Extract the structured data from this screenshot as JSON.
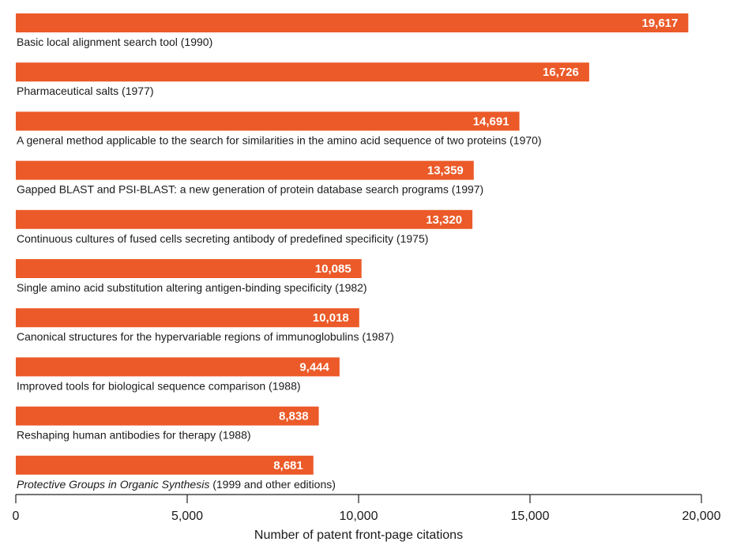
{
  "chart_data": {
    "type": "bar",
    "orientation": "horizontal",
    "categories": [
      {
        "pre": "",
        "italic": "",
        "post": "Basic local alignment search tool (1990)"
      },
      {
        "pre": "",
        "italic": "",
        "post": "Pharmaceutical salts (1977)"
      },
      {
        "pre": "",
        "italic": "",
        "post": "A general method applicable to the search for similarities in the amino acid sequence of two proteins (1970)"
      },
      {
        "pre": "",
        "italic": "",
        "post": "Gapped BLAST and PSI-BLAST: a new generation of protein database search programs (1997)"
      },
      {
        "pre": "",
        "italic": "",
        "post": "Continuous cultures of fused cells secreting antibody of predefined specificity (1975)"
      },
      {
        "pre": "",
        "italic": "",
        "post": "Single amino acid substitution altering antigen-binding specificity (1982)"
      },
      {
        "pre": "",
        "italic": "",
        "post": "Canonical structures for the hypervariable regions of immunoglobulins (1987)"
      },
      {
        "pre": "",
        "italic": "",
        "post": "Improved tools for biological sequence comparison (1988)"
      },
      {
        "pre": "",
        "italic": "",
        "post": "Reshaping human antibodies for therapy (1988)"
      },
      {
        "pre": "",
        "italic": "Protective Groups in Organic Synthesis",
        "post": " (1999 and other editions)"
      }
    ],
    "values": [
      19617,
      16726,
      14691,
      13359,
      13320,
      10085,
      10018,
      9444,
      8838,
      8681
    ],
    "value_labels": [
      "19,617",
      "16,726",
      "14,691",
      "13,359",
      "13,320",
      "10,085",
      "10,018",
      "9,444",
      "8,838",
      "8,681"
    ],
    "xlabel": "Number of patent front-page citations",
    "ylabel": "",
    "xlim": [
      0,
      20000
    ],
    "ticks": [
      0,
      5000,
      10000,
      15000,
      20000
    ],
    "tick_labels": [
      "0",
      "5,000",
      "10,000",
      "15,000",
      "20,000"
    ],
    "grid": false,
    "bar_color": "#eb5a28",
    "value_label_color": "#ffffff"
  }
}
